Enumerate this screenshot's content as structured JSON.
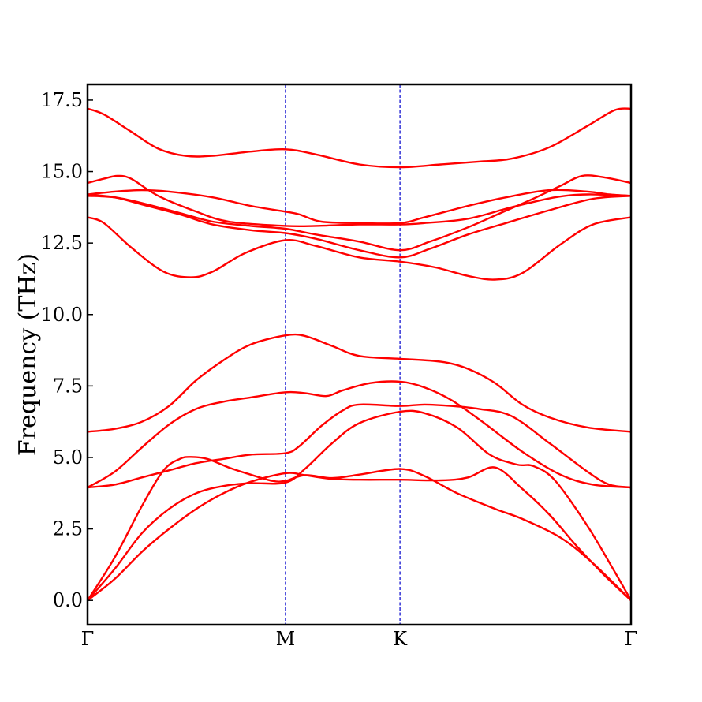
{
  "chart_data": {
    "type": "line",
    "title": "",
    "xlabel": "",
    "ylabel": "Frequency (THz)",
    "ylim": [
      -0.85,
      18.05
    ],
    "yticks": [
      "0.0",
      "2.5",
      "5.0",
      "7.5",
      "10.0",
      "12.5",
      "15.0",
      "17.5"
    ],
    "ytick_values": [
      0,
      2.5,
      5,
      7.5,
      10,
      12.5,
      15,
      17.5
    ],
    "xticks": [
      {
        "label": "Γ",
        "pos": 0
      },
      {
        "label": "M",
        "pos": 0.3642
      },
      {
        "label": "K",
        "pos": 0.5749
      },
      {
        "label": "Γ",
        "pos": 1
      }
    ],
    "xlim": [
      0,
      1
    ],
    "grid": false,
    "line_color": "#ff0000",
    "divider_color": "#0000cc",
    "series": [
      {
        "values": [
          [
            0,
            0
          ],
          [
            0.05,
            1.5
          ],
          [
            0.1,
            3.3
          ],
          [
            0.14,
            4.55
          ],
          [
            0.17,
            4.95
          ],
          [
            0.19,
            5.02
          ],
          [
            0.22,
            4.95
          ],
          [
            0.26,
            4.65
          ],
          [
            0.3,
            4.4
          ],
          [
            0.34,
            4.18
          ],
          [
            0.3642,
            4.18
          ],
          [
            0.4,
            4.38
          ],
          [
            0.45,
            4.28
          ],
          [
            0.5,
            4.4
          ],
          [
            0.5749,
            4.6
          ],
          [
            0.62,
            4.35
          ],
          [
            0.68,
            3.75
          ],
          [
            0.75,
            3.2
          ],
          [
            0.8,
            2.85
          ],
          [
            0.87,
            2.2
          ],
          [
            0.93,
            1.3
          ],
          [
            1,
            0
          ]
        ]
      },
      {
        "values": [
          [
            0,
            0
          ],
          [
            0.05,
            0.75
          ],
          [
            0.1,
            1.7
          ],
          [
            0.15,
            2.5
          ],
          [
            0.2,
            3.2
          ],
          [
            0.25,
            3.75
          ],
          [
            0.3,
            4.15
          ],
          [
            0.3642,
            4.45
          ],
          [
            0.4,
            4.38
          ],
          [
            0.45,
            4.25
          ],
          [
            0.5,
            4.22
          ],
          [
            0.5749,
            4.22
          ],
          [
            0.65,
            4.2
          ],
          [
            0.7,
            4.3
          ],
          [
            0.75,
            4.65
          ],
          [
            0.8,
            3.9
          ],
          [
            0.85,
            3.0
          ],
          [
            0.9,
            1.9
          ],
          [
            0.95,
            0.9
          ],
          [
            1,
            0
          ]
        ]
      },
      {
        "values": [
          [
            0,
            0
          ],
          [
            0.05,
            1.1
          ],
          [
            0.1,
            2.35
          ],
          [
            0.15,
            3.2
          ],
          [
            0.2,
            3.75
          ],
          [
            0.25,
            4.0
          ],
          [
            0.3,
            4.1
          ],
          [
            0.3642,
            4.12
          ],
          [
            0.4,
            4.6
          ],
          [
            0.45,
            5.5
          ],
          [
            0.5,
            6.2
          ],
          [
            0.5749,
            6.6
          ],
          [
            0.62,
            6.55
          ],
          [
            0.68,
            6.05
          ],
          [
            0.74,
            5.1
          ],
          [
            0.79,
            4.75
          ],
          [
            0.82,
            4.7
          ],
          [
            0.86,
            4.2
          ],
          [
            0.92,
            2.6
          ],
          [
            0.97,
            1.0
          ],
          [
            1,
            0
          ]
        ]
      },
      {
        "values": [
          [
            0,
            3.95
          ],
          [
            0.05,
            4.05
          ],
          [
            0.1,
            4.3
          ],
          [
            0.15,
            4.55
          ],
          [
            0.2,
            4.8
          ],
          [
            0.25,
            4.95
          ],
          [
            0.3,
            5.1
          ],
          [
            0.3642,
            5.15
          ],
          [
            0.39,
            5.4
          ],
          [
            0.43,
            6.1
          ],
          [
            0.47,
            6.65
          ],
          [
            0.5,
            6.85
          ],
          [
            0.5749,
            6.8
          ],
          [
            0.62,
            6.85
          ],
          [
            0.67,
            6.8
          ],
          [
            0.72,
            6.7
          ],
          [
            0.78,
            6.45
          ],
          [
            0.85,
            5.5
          ],
          [
            0.92,
            4.5
          ],
          [
            0.96,
            4.05
          ],
          [
            1,
            3.95
          ]
        ]
      },
      {
        "values": [
          [
            0,
            3.95
          ],
          [
            0.05,
            4.5
          ],
          [
            0.1,
            5.35
          ],
          [
            0.15,
            6.15
          ],
          [
            0.2,
            6.7
          ],
          [
            0.25,
            6.95
          ],
          [
            0.3,
            7.1
          ],
          [
            0.3642,
            7.28
          ],
          [
            0.4,
            7.25
          ],
          [
            0.44,
            7.15
          ],
          [
            0.47,
            7.35
          ],
          [
            0.52,
            7.6
          ],
          [
            0.5749,
            7.65
          ],
          [
            0.62,
            7.45
          ],
          [
            0.67,
            7.0
          ],
          [
            0.73,
            6.2
          ],
          [
            0.8,
            5.2
          ],
          [
            0.87,
            4.4
          ],
          [
            0.93,
            4.05
          ],
          [
            1,
            3.95
          ]
        ]
      },
      {
        "values": [
          [
            0,
            5.9
          ],
          [
            0.05,
            6.0
          ],
          [
            0.1,
            6.25
          ],
          [
            0.15,
            6.8
          ],
          [
            0.2,
            7.7
          ],
          [
            0.25,
            8.4
          ],
          [
            0.3,
            8.95
          ],
          [
            0.3642,
            9.27
          ],
          [
            0.4,
            9.25
          ],
          [
            0.45,
            8.9
          ],
          [
            0.5,
            8.55
          ],
          [
            0.5749,
            8.45
          ],
          [
            0.65,
            8.35
          ],
          [
            0.7,
            8.1
          ],
          [
            0.75,
            7.6
          ],
          [
            0.8,
            6.85
          ],
          [
            0.85,
            6.4
          ],
          [
            0.92,
            6.05
          ],
          [
            1,
            5.9
          ]
        ]
      },
      {
        "values": [
          [
            0,
            13.4
          ],
          [
            0.03,
            13.2
          ],
          [
            0.08,
            12.35
          ],
          [
            0.14,
            11.5
          ],
          [
            0.19,
            11.3
          ],
          [
            0.23,
            11.5
          ],
          [
            0.29,
            12.15
          ],
          [
            0.3642,
            12.6
          ],
          [
            0.42,
            12.4
          ],
          [
            0.5,
            12.0
          ],
          [
            0.5749,
            11.85
          ],
          [
            0.64,
            11.65
          ],
          [
            0.7,
            11.35
          ],
          [
            0.75,
            11.22
          ],
          [
            0.8,
            11.45
          ],
          [
            0.87,
            12.45
          ],
          [
            0.93,
            13.15
          ],
          [
            1,
            13.4
          ]
        ]
      },
      {
        "values": [
          [
            0,
            14.2
          ],
          [
            0.05,
            14.1
          ],
          [
            0.1,
            13.85
          ],
          [
            0.17,
            13.5
          ],
          [
            0.23,
            13.15
          ],
          [
            0.3,
            12.95
          ],
          [
            0.3642,
            12.85
          ],
          [
            0.42,
            12.65
          ],
          [
            0.5,
            12.25
          ],
          [
            0.5749,
            12.0
          ],
          [
            0.63,
            12.3
          ],
          [
            0.7,
            12.8
          ],
          [
            0.77,
            13.2
          ],
          [
            0.85,
            13.65
          ],
          [
            0.93,
            14.05
          ],
          [
            1,
            14.15
          ]
        ]
      },
      {
        "values": [
          [
            0,
            14.15
          ],
          [
            0.05,
            14.1
          ],
          [
            0.1,
            13.9
          ],
          [
            0.17,
            13.55
          ],
          [
            0.23,
            13.25
          ],
          [
            0.3,
            13.1
          ],
          [
            0.3642,
            13.0
          ],
          [
            0.42,
            12.8
          ],
          [
            0.5,
            12.55
          ],
          [
            0.5749,
            12.25
          ],
          [
            0.63,
            12.55
          ],
          [
            0.7,
            13.05
          ],
          [
            0.76,
            13.55
          ],
          [
            0.82,
            14.05
          ],
          [
            0.87,
            14.5
          ],
          [
            0.91,
            14.85
          ],
          [
            0.95,
            14.8
          ],
          [
            1,
            14.6
          ]
        ]
      },
      {
        "values": [
          [
            0,
            14.6
          ],
          [
            0.03,
            14.75
          ],
          [
            0.055,
            14.85
          ],
          [
            0.08,
            14.75
          ],
          [
            0.13,
            14.15
          ],
          [
            0.2,
            13.6
          ],
          [
            0.26,
            13.25
          ],
          [
            0.3642,
            13.1
          ],
          [
            0.42,
            13.1
          ],
          [
            0.5,
            13.15
          ],
          [
            0.5749,
            13.15
          ],
          [
            0.62,
            13.2
          ],
          [
            0.7,
            13.35
          ],
          [
            0.78,
            13.75
          ],
          [
            0.86,
            14.1
          ],
          [
            0.92,
            14.2
          ],
          [
            1,
            14.15
          ]
        ]
      },
      {
        "values": [
          [
            0,
            14.2
          ],
          [
            0.05,
            14.3
          ],
          [
            0.1,
            14.35
          ],
          [
            0.15,
            14.3
          ],
          [
            0.23,
            14.1
          ],
          [
            0.3,
            13.8
          ],
          [
            0.3642,
            13.6
          ],
          [
            0.39,
            13.5
          ],
          [
            0.43,
            13.25
          ],
          [
            0.5,
            13.2
          ],
          [
            0.5749,
            13.2
          ],
          [
            0.62,
            13.4
          ],
          [
            0.7,
            13.8
          ],
          [
            0.77,
            14.1
          ],
          [
            0.85,
            14.35
          ],
          [
            0.92,
            14.3
          ],
          [
            0.96,
            14.2
          ],
          [
            1,
            14.15
          ]
        ]
      },
      {
        "values": [
          [
            0,
            17.2
          ],
          [
            0.03,
            17.0
          ],
          [
            0.08,
            16.4
          ],
          [
            0.13,
            15.8
          ],
          [
            0.18,
            15.55
          ],
          [
            0.23,
            15.55
          ],
          [
            0.3,
            15.7
          ],
          [
            0.3642,
            15.78
          ],
          [
            0.42,
            15.6
          ],
          [
            0.5,
            15.25
          ],
          [
            0.5749,
            15.15
          ],
          [
            0.65,
            15.25
          ],
          [
            0.72,
            15.35
          ],
          [
            0.78,
            15.45
          ],
          [
            0.85,
            15.85
          ],
          [
            0.92,
            16.6
          ],
          [
            0.97,
            17.15
          ],
          [
            1,
            17.2
          ]
        ]
      }
    ]
  }
}
